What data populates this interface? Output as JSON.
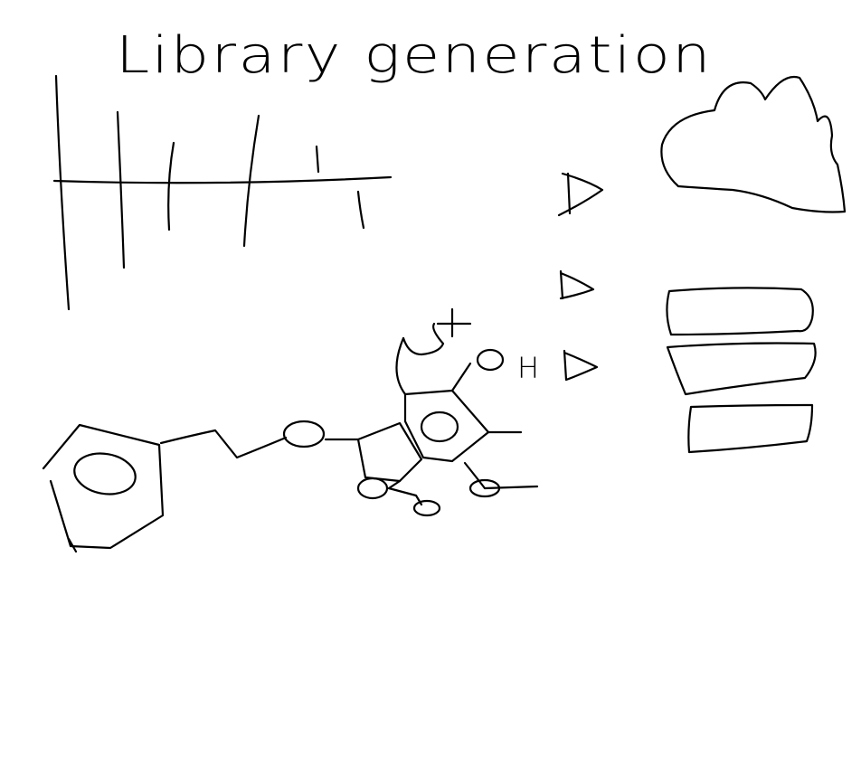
{
  "title": "Library generation",
  "label_h": "H",
  "colors": {
    "background": "#ffffff",
    "ink": "#000000"
  }
}
